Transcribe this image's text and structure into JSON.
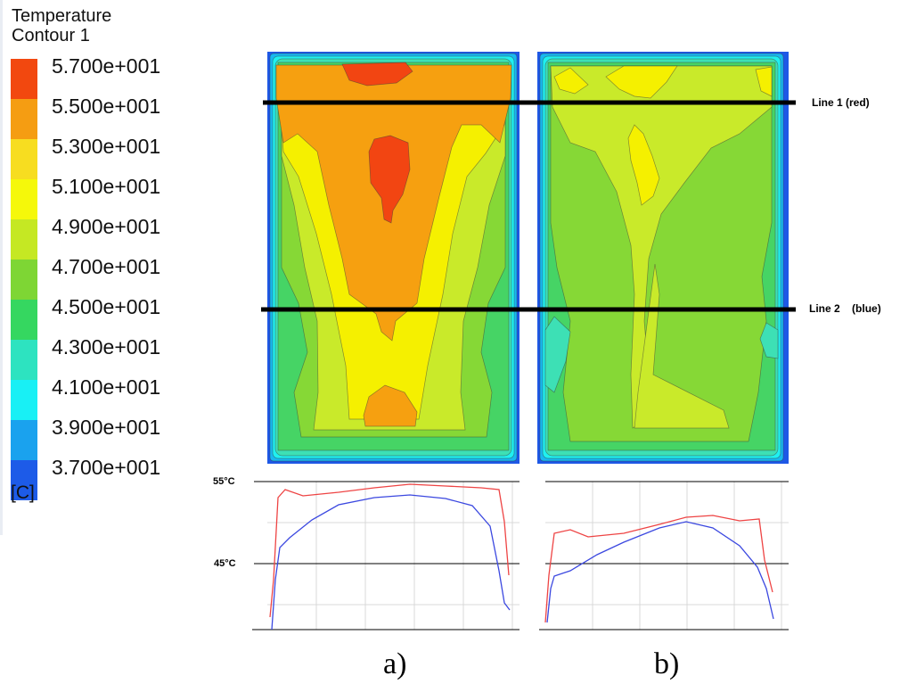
{
  "legend": {
    "title_line1": "Temperature",
    "title_line2": "Contour 1",
    "unit": "[C]",
    "ticks": [
      "5.700e+001",
      "5.500e+001",
      "5.300e+001",
      "5.100e+001",
      "4.900e+001",
      "4.700e+001",
      "4.500e+001",
      "4.300e+001",
      "4.100e+001",
      "3.900e+001",
      "3.700e+001"
    ],
    "colors": [
      "#f2480f",
      "#f59d12",
      "#f7dd20",
      "#f5f80a",
      "#c5e823",
      "#7ed634",
      "#35d760",
      "#2de3c0",
      "#18f0f5",
      "#1aa2ee",
      "#1d5be8"
    ]
  },
  "contour_colors": {
    "c57": "#f24512",
    "c55": "#f6a010",
    "c53": "#f5f000",
    "c51": "#c9ea2a",
    "c49": "#86d836",
    "c47": "#46d465",
    "c45": "#3de0b5",
    "c43": "#1ff0f0",
    "c41": "#18b8f0",
    "c39": "#1e58e6"
  },
  "lines": {
    "line1": "Line 1 (red)",
    "line2_a": "Line 2",
    "line2_b": "(blue)"
  },
  "profiles": {
    "y_top_label": "55°C",
    "y_mid_label": "45°C",
    "y_top_value": 55,
    "y_mid_value": 45,
    "series_colors": {
      "line1": "#ee4444",
      "line2": "#3b48e0"
    }
  },
  "panels": {
    "a": "a)",
    "b": "b)"
  }
}
